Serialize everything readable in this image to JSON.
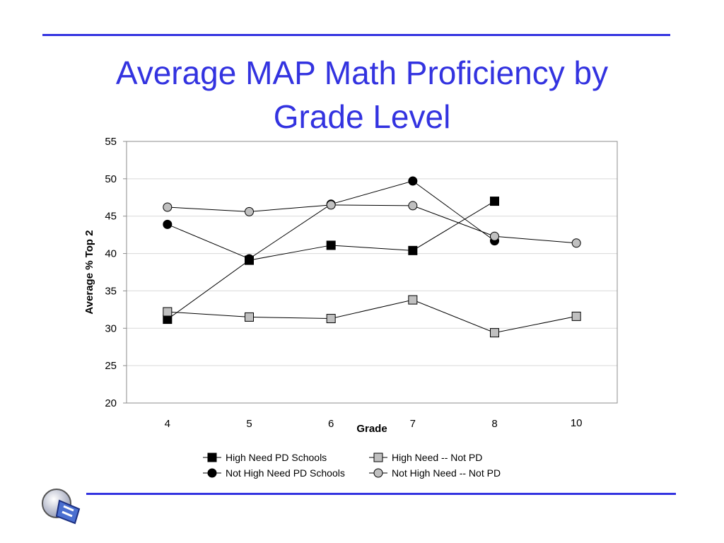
{
  "slide": {
    "title_line1": "Average MAP Math Proficiency by",
    "title_line2": "Grade Level",
    "accent_color": "#3333e0"
  },
  "chart_data": {
    "type": "line",
    "title": "",
    "xlabel": "Grade",
    "ylabel": "Average % Top 2",
    "categories": [
      "4",
      "5",
      "6",
      "7",
      "8",
      "10"
    ],
    "ylim": [
      20,
      55
    ],
    "yticks": [
      20,
      25,
      30,
      35,
      40,
      45,
      50,
      55
    ],
    "grid": true,
    "legend_position": "bottom",
    "series": [
      {
        "name": "High Need PD Schools",
        "marker": "square",
        "fill": "#000000",
        "values": [
          31.2,
          39.1,
          41.1,
          40.4,
          47.0,
          null
        ]
      },
      {
        "name": "High Need -- Not PD",
        "marker": "square",
        "fill": "#c0c0c0",
        "values": [
          32.2,
          31.5,
          31.3,
          33.8,
          29.4,
          31.6
        ]
      },
      {
        "name": "Not High Need PD Schools",
        "marker": "circle",
        "fill": "#000000",
        "values": [
          43.9,
          39.3,
          46.6,
          49.7,
          41.7,
          null
        ]
      },
      {
        "name": "Not High Need -- Not PD",
        "marker": "circle",
        "fill": "#c0c0c0",
        "values": [
          46.2,
          45.6,
          46.5,
          46.4,
          42.3,
          41.4
        ]
      }
    ]
  }
}
